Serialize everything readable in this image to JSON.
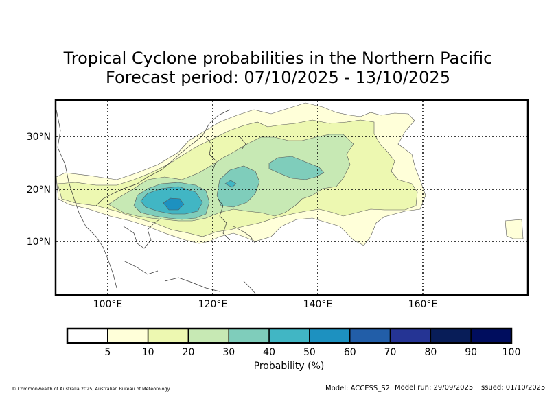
{
  "title": {
    "line1": "Tropical Cyclone probabilities in the Northern Pacific",
    "line2": "Forecast period: 07/10/2025 - 13/10/2025"
  },
  "axes": {
    "lon_ticks": [
      "100°E",
      "120°E",
      "140°E",
      "160°E"
    ],
    "lat_ticks": [
      "30°N",
      "20°N",
      "10°N"
    ]
  },
  "colorbar": {
    "label": "Probability (%)",
    "ticks": [
      "5",
      "10",
      "20",
      "30",
      "40",
      "50",
      "60",
      "70",
      "80",
      "90",
      "100"
    ],
    "colors": [
      "#ffffff",
      "#ffffd9",
      "#edf8b1",
      "#c7e9b4",
      "#7fcdbb",
      "#41b6c4",
      "#1d91c0",
      "#225ea8",
      "#253494",
      "#081d58",
      "#000d5e"
    ]
  },
  "footer": {
    "copyright": "© Commonwealth of Australia 2025, Australian Bureau of Meteorology",
    "model": "Model: ACCESS_S2",
    "model_run": "Model run: 29/09/2025",
    "issued": "Issued: 01/10/2025"
  },
  "map_layers": [
    {
      "name": "probability-5-10",
      "color": "#ffffd9",
      "level": "5"
    },
    {
      "name": "probability-10-20",
      "color": "#edf8b1",
      "level": "10"
    },
    {
      "name": "probability-20-30",
      "color": "#c7e9b4",
      "level": "20"
    },
    {
      "name": "probability-30-40",
      "color": "#7fcdbb",
      "level": "30"
    },
    {
      "name": "probability-40-50",
      "color": "#41b6c4",
      "level": "40"
    },
    {
      "name": "probability-50-60",
      "color": "#1d91c0",
      "level": "50"
    }
  ]
}
